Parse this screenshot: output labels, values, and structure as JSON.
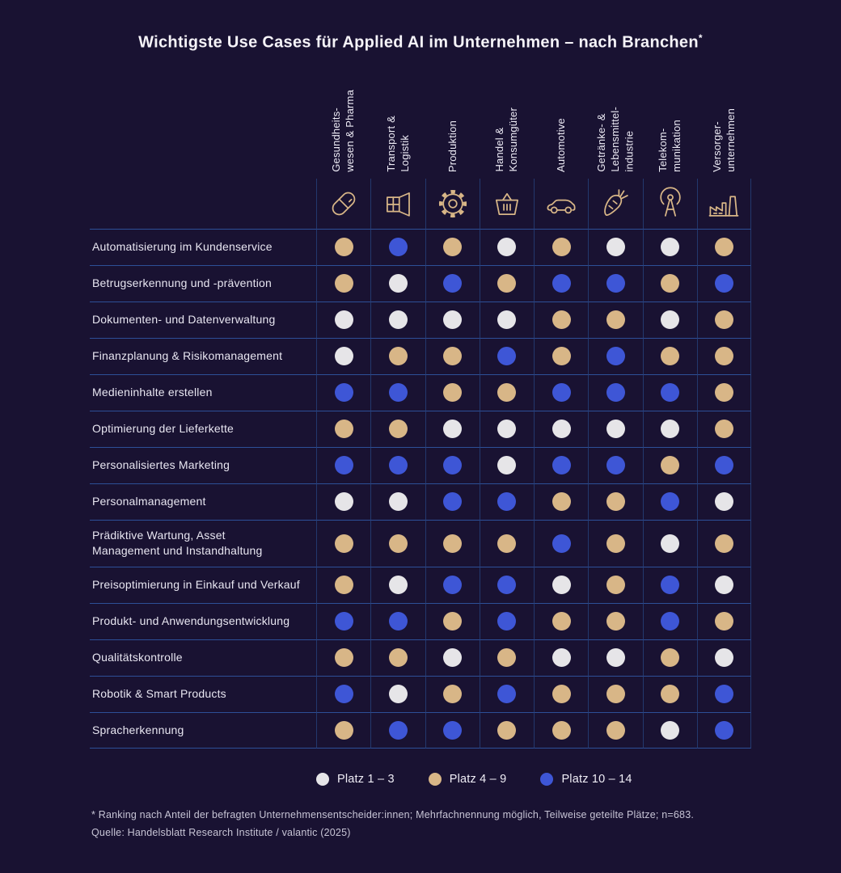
{
  "title": {
    "text": "Wichtigste Use Cases für Applied AI im Unternehmen – nach Branchen",
    "asterisk": "*"
  },
  "colors": {
    "background": "#191232",
    "accent_gold": "#d8b687",
    "rank_white": "#e6e5e8",
    "rank_gold": "#d8b687",
    "rank_blue": "#3e56d6",
    "grid_horizontal": "#2d4f97",
    "grid_vertical": "#23386d"
  },
  "chart_data": {
    "type": "heatmap",
    "title": "Wichtigste Use Cases für Applied AI im Unternehmen – nach Branchen*",
    "legend_position": "bottom",
    "rank_categories": [
      {
        "key": "1-3",
        "label": "Platz 1 – 3",
        "color": "#e6e5e8"
      },
      {
        "key": "4-9",
        "label": "Platz 4 – 9",
        "color": "#d8b687"
      },
      {
        "key": "10-14",
        "label": "Platz 10 – 14",
        "color": "#3e56d6"
      }
    ],
    "rank_colors": {
      "1-3": "#e6e5e8",
      "4-9": "#d8b687",
      "10-14": "#3e56d6"
    },
    "columns": [
      {
        "label_lines": [
          "Gesundheits-",
          "wesen & Pharma"
        ],
        "icon": "pill-icon"
      },
      {
        "label_lines": [
          "Transport &",
          "Logistik"
        ],
        "icon": "package-icon"
      },
      {
        "label_lines": [
          "Produktion"
        ],
        "icon": "gear-icon"
      },
      {
        "label_lines": [
          "Handel &",
          "Konsumgüter"
        ],
        "icon": "basket-icon"
      },
      {
        "label_lines": [
          "Automotive"
        ],
        "icon": "car-icon"
      },
      {
        "label_lines": [
          "Getränke- &",
          "Lebensmittel-",
          "industrie"
        ],
        "icon": "carrot-icon"
      },
      {
        "label_lines": [
          "Telekom-",
          "munikation"
        ],
        "icon": "antenna-icon"
      },
      {
        "label_lines": [
          "Versorger-",
          "unternehmen"
        ],
        "icon": "factory-icon"
      }
    ],
    "rows": [
      "Automatisierung im Kundenservice",
      "Betrugserkennung und -prävention",
      "Dokumenten- und Datenverwaltung",
      "Finanzplanung & Risikomanagement",
      "Medieninhalte erstellen",
      "Optimierung der Lieferkette",
      "Personalisiertes Marketing",
      "Personalmanagement",
      "Prädiktive Wartung, Asset\nManagement und Instandhaltung",
      "Preisoptimierung in Einkauf und Verkauf",
      "Produkt- und Anwendungsentwicklung",
      "Qualitätskontrolle",
      "Robotik & Smart Products",
      "Spracherkennung"
    ],
    "matrix": [
      [
        "4-9",
        "10-14",
        "4-9",
        "1-3",
        "4-9",
        "1-3",
        "1-3",
        "4-9"
      ],
      [
        "4-9",
        "1-3",
        "10-14",
        "4-9",
        "10-14",
        "10-14",
        "4-9",
        "10-14"
      ],
      [
        "1-3",
        "1-3",
        "1-3",
        "1-3",
        "4-9",
        "4-9",
        "1-3",
        "4-9"
      ],
      [
        "1-3",
        "4-9",
        "4-9",
        "10-14",
        "4-9",
        "10-14",
        "4-9",
        "4-9"
      ],
      [
        "10-14",
        "10-14",
        "4-9",
        "4-9",
        "10-14",
        "10-14",
        "10-14",
        "4-9"
      ],
      [
        "4-9",
        "4-9",
        "1-3",
        "1-3",
        "1-3",
        "1-3",
        "1-3",
        "4-9"
      ],
      [
        "10-14",
        "10-14",
        "10-14",
        "1-3",
        "10-14",
        "10-14",
        "4-9",
        "10-14"
      ],
      [
        "1-3",
        "1-3",
        "10-14",
        "10-14",
        "4-9",
        "4-9",
        "10-14",
        "1-3"
      ],
      [
        "4-9",
        "4-9",
        "4-9",
        "4-9",
        "10-14",
        "4-9",
        "1-3",
        "4-9"
      ],
      [
        "4-9",
        "1-3",
        "10-14",
        "10-14",
        "1-3",
        "4-9",
        "10-14",
        "1-3"
      ],
      [
        "10-14",
        "10-14",
        "4-9",
        "10-14",
        "4-9",
        "4-9",
        "10-14",
        "4-9"
      ],
      [
        "4-9",
        "4-9",
        "1-3",
        "4-9",
        "1-3",
        "1-3",
        "4-9",
        "1-3"
      ],
      [
        "10-14",
        "1-3",
        "4-9",
        "10-14",
        "4-9",
        "4-9",
        "4-9",
        "10-14"
      ],
      [
        "4-9",
        "10-14",
        "10-14",
        "4-9",
        "4-9",
        "4-9",
        "1-3",
        "10-14"
      ]
    ]
  },
  "legend": {
    "items": [
      {
        "label": "Platz 1 – 3",
        "rank": "1-3"
      },
      {
        "label": "Platz 4 – 9",
        "rank": "4-9"
      },
      {
        "label": "Platz 10 – 14",
        "rank": "10-14"
      }
    ]
  },
  "footnote": {
    "line1": "* Ranking nach Anteil der befragten Unternehmensentscheider:innen; Mehrfachnennung möglich, Teilweise geteilte Plätze; n=683.",
    "line2": "Quelle: Handelsblatt Research Institute / valantic (2025)"
  }
}
